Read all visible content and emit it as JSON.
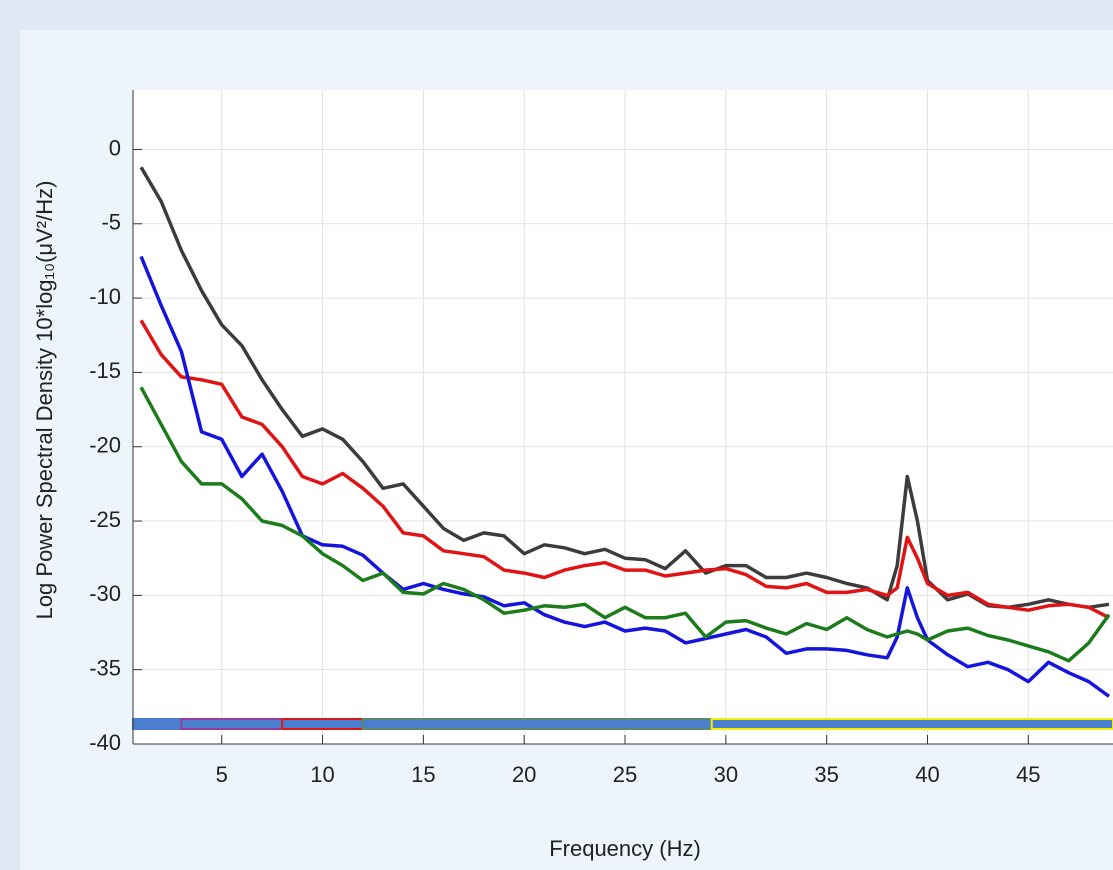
{
  "chart_data": {
    "type": "line",
    "y_label": "Log  Power  Spectral  Density  10*log₁₀(μV²/Hz)",
    "x_label": "Frequency (Hz)",
    "x": [
      1,
      2,
      3,
      4,
      5,
      6,
      7,
      8,
      9,
      10,
      11,
      12,
      13,
      14,
      15,
      16,
      17,
      18,
      19,
      20,
      21,
      22,
      23,
      24,
      25,
      26,
      27,
      28,
      29,
      30,
      31,
      32,
      33,
      34,
      35,
      36,
      37,
      38,
      38.5,
      39,
      39.5,
      40,
      41,
      42,
      43,
      44,
      45,
      46,
      47,
      48,
      49
    ],
    "series": [
      {
        "color": "#3c3c3c",
        "values": [
          -1.2,
          -3.5,
          -6.8,
          -9.5,
          -11.8,
          -13.2,
          -15.5,
          -17.5,
          -19.3,
          -18.8,
          -19.5,
          -21,
          -22.8,
          -22.5,
          -24,
          -25.5,
          -26.3,
          -25.8,
          -26,
          -27.2,
          -26.6,
          -26.8,
          -27.2,
          -26.9,
          -27.5,
          -27.6,
          -28.2,
          -27,
          -28.5,
          -28,
          -28,
          -28.8,
          -28.8,
          -28.5,
          -28.8,
          -29.2,
          -29.5,
          -30.3,
          -28,
          -22,
          -25,
          -29,
          -30.3,
          -29.9,
          -30.7,
          -30.8,
          -30.6,
          -30.3,
          -30.6,
          -30.8,
          -30.6
        ]
      },
      {
        "color": "#e01414",
        "values": [
          -11.5,
          -13.8,
          -15.3,
          -15.5,
          -15.8,
          -18,
          -18.5,
          -20,
          -22,
          -22.5,
          -21.8,
          -22.8,
          -24,
          -25.8,
          -26,
          -27,
          -27.2,
          -27.4,
          -28.3,
          -28.5,
          -28.8,
          -28.3,
          -28,
          -27.8,
          -28.3,
          -28.3,
          -28.7,
          -28.5,
          -28.3,
          -28.2,
          -28.6,
          -29.4,
          -29.5,
          -29.2,
          -29.8,
          -29.8,
          -29.6,
          -30,
          -29.5,
          -26.1,
          -27.5,
          -29.2,
          -30,
          -29.8,
          -30.6,
          -30.8,
          -31,
          -30.7,
          -30.6,
          -30.8,
          -31.5
        ]
      },
      {
        "color": "#1414dc",
        "values": [
          -7.2,
          -10.5,
          -13.6,
          -19,
          -19.5,
          -22,
          -20.5,
          -23,
          -26,
          -26.6,
          -26.7,
          -27.3,
          -28.5,
          -29.6,
          -29.2,
          -29.6,
          -29.9,
          -30.1,
          -30.7,
          -30.5,
          -31.3,
          -31.8,
          -32.1,
          -31.8,
          -32.4,
          -32.2,
          -32.4,
          -33.2,
          -32.9,
          -32.6,
          -32.3,
          -32.8,
          -33.9,
          -33.6,
          -33.6,
          -33.7,
          -34,
          -34.2,
          -32.8,
          -29.5,
          -31.5,
          -33,
          -34,
          -34.8,
          -34.5,
          -35,
          -35.8,
          -34.5,
          -35.2,
          -35.8,
          -36.8
        ]
      },
      {
        "color": "#1c7c1c",
        "values": [
          -16,
          -18.5,
          -21,
          -22.5,
          -22.5,
          -23.5,
          -25,
          -25.3,
          -26,
          -27.2,
          -28,
          -29,
          -28.5,
          -29.8,
          -29.9,
          -29.2,
          -29.6,
          -30.3,
          -31.2,
          -31,
          -30.7,
          -30.8,
          -30.6,
          -31.5,
          -30.8,
          -31.5,
          -31.5,
          -31.2,
          -32.8,
          -31.8,
          -31.7,
          -32.2,
          -32.6,
          -31.9,
          -32.3,
          -31.5,
          -32.3,
          -32.8,
          -32.6,
          -32.4,
          -32.6,
          -33,
          -32.4,
          -32.2,
          -32.7,
          -33,
          -33.4,
          -33.8,
          -34.4,
          -33.2,
          -31.3
        ]
      }
    ],
    "bands": [
      {
        "start": 0.6,
        "end": 3,
        "color": "#4a7fd0"
      },
      {
        "start": 3,
        "end": 8,
        "color": "#9a3c9a"
      },
      {
        "start": 8,
        "end": 12,
        "color": "#e01414"
      },
      {
        "start": 12,
        "end": 29.3,
        "color": "#5a8a6a"
      },
      {
        "start": 29.3,
        "end": 49.2,
        "color": "#f0f000"
      }
    ],
    "xlim": [
      0.6,
      49.2
    ],
    "ylim": [
      -40,
      4
    ],
    "xticks": [
      5,
      10,
      15,
      20,
      25,
      30,
      35,
      40,
      45
    ],
    "yticks": [
      0,
      -5,
      -10,
      -15,
      -20,
      -25,
      -30,
      -35,
      -40
    ],
    "grid": true
  }
}
